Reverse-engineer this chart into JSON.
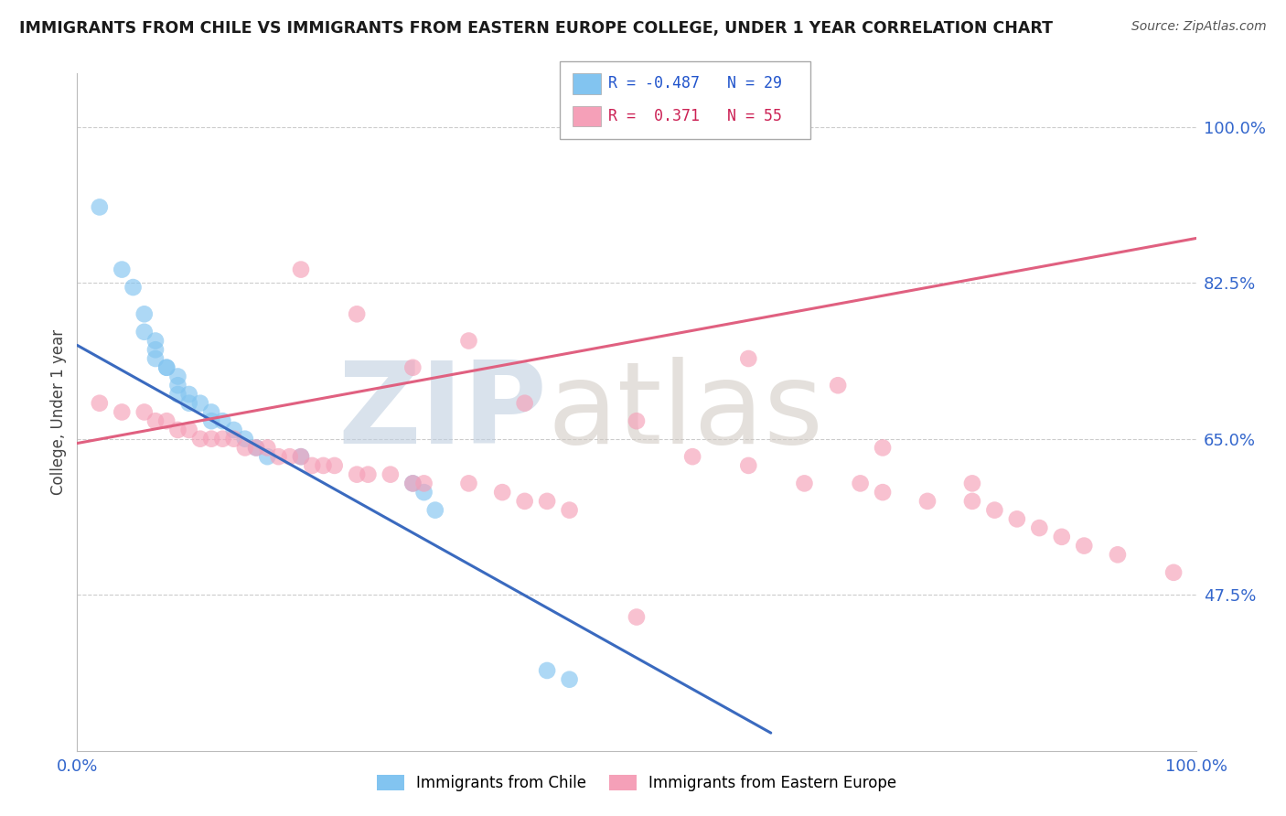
{
  "title": "IMMIGRANTS FROM CHILE VS IMMIGRANTS FROM EASTERN EUROPE COLLEGE, UNDER 1 YEAR CORRELATION CHART",
  "source": "Source: ZipAtlas.com",
  "ylabel": "College, Under 1 year",
  "ytick_labels": [
    "47.5%",
    "65.0%",
    "82.5%",
    "100.0%"
  ],
  "ytick_values": [
    0.475,
    0.65,
    0.825,
    1.0
  ],
  "xlim": [
    0.0,
    1.0
  ],
  "ylim": [
    0.3,
    1.06
  ],
  "legend_r1": "R = -0.487",
  "legend_n1": "N = 29",
  "legend_r2": "R =  0.371",
  "legend_n2": "N = 55",
  "color_chile": "#82c4f0",
  "color_eastern": "#f5a0b8",
  "color_chile_line": "#3a6abf",
  "color_eastern_line": "#e06080",
  "chile_scatter_x": [
    0.02,
    0.04,
    0.05,
    0.06,
    0.06,
    0.07,
    0.07,
    0.07,
    0.08,
    0.08,
    0.09,
    0.09,
    0.09,
    0.1,
    0.1,
    0.11,
    0.12,
    0.12,
    0.13,
    0.14,
    0.15,
    0.16,
    0.17,
    0.2,
    0.3,
    0.31,
    0.32,
    0.42,
    0.44
  ],
  "chile_scatter_y": [
    0.91,
    0.84,
    0.82,
    0.79,
    0.77,
    0.76,
    0.75,
    0.74,
    0.73,
    0.73,
    0.72,
    0.71,
    0.7,
    0.7,
    0.69,
    0.69,
    0.68,
    0.67,
    0.67,
    0.66,
    0.65,
    0.64,
    0.63,
    0.63,
    0.6,
    0.59,
    0.57,
    0.39,
    0.38
  ],
  "eastern_scatter_x": [
    0.02,
    0.04,
    0.06,
    0.07,
    0.08,
    0.09,
    0.1,
    0.11,
    0.12,
    0.13,
    0.14,
    0.15,
    0.16,
    0.17,
    0.18,
    0.19,
    0.2,
    0.21,
    0.22,
    0.23,
    0.25,
    0.26,
    0.28,
    0.3,
    0.31,
    0.35,
    0.38,
    0.4,
    0.42,
    0.44,
    0.3,
    0.4,
    0.5,
    0.55,
    0.6,
    0.65,
    0.7,
    0.72,
    0.76,
    0.8,
    0.82,
    0.84,
    0.86,
    0.88,
    0.9,
    0.93,
    0.98,
    0.25,
    0.35,
    0.2,
    0.6,
    0.68,
    0.72,
    0.8,
    0.5
  ],
  "eastern_scatter_y": [
    0.69,
    0.68,
    0.68,
    0.67,
    0.67,
    0.66,
    0.66,
    0.65,
    0.65,
    0.65,
    0.65,
    0.64,
    0.64,
    0.64,
    0.63,
    0.63,
    0.63,
    0.62,
    0.62,
    0.62,
    0.61,
    0.61,
    0.61,
    0.6,
    0.6,
    0.6,
    0.59,
    0.58,
    0.58,
    0.57,
    0.73,
    0.69,
    0.67,
    0.63,
    0.62,
    0.6,
    0.6,
    0.59,
    0.58,
    0.58,
    0.57,
    0.56,
    0.55,
    0.54,
    0.53,
    0.52,
    0.5,
    0.79,
    0.76,
    0.84,
    0.74,
    0.71,
    0.64,
    0.6,
    0.45
  ],
  "chile_trend_x": [
    0.0,
    0.62
  ],
  "chile_trend_y": [
    0.755,
    0.32
  ],
  "eastern_trend_x": [
    0.0,
    1.0
  ],
  "eastern_trend_y": [
    0.645,
    0.875
  ]
}
